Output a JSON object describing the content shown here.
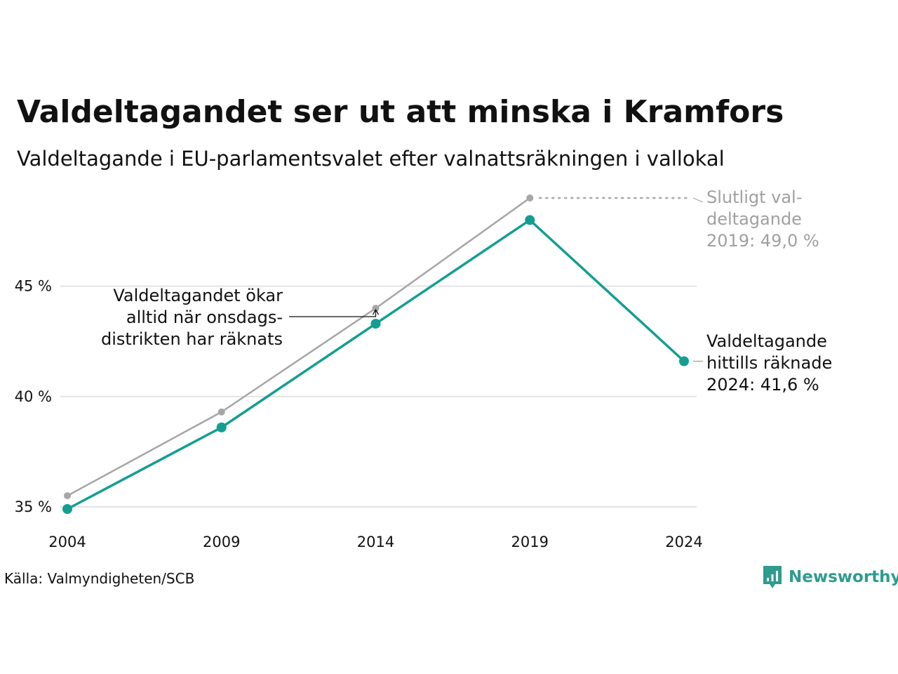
{
  "title": "Valdeltagandet ser ut att minska i Kramfors",
  "subtitle": "Valdeltagande i EU-parlamentsvalet efter valnattsräkningen i vallokal",
  "source": "Källa: Valmyndigheten/SCB",
  "brand": "Newsworthy",
  "chart_data": {
    "type": "line",
    "title": "Valdeltagandet ser ut att minska i Kramfors",
    "subtitle": "Valdeltagande i EU-parlamentsvalet efter valnattsräkningen i vallokal",
    "xlabel": "",
    "ylabel": "",
    "x": [
      2004,
      2009,
      2014,
      2019,
      2024
    ],
    "x_ticks": [
      "2004",
      "2009",
      "2014",
      "2019",
      "2024"
    ],
    "y_ticks": [
      35,
      40,
      45
    ],
    "y_tick_labels": [
      "35 %",
      "40 %",
      "45 %"
    ],
    "ylim": [
      34.5,
      49.5
    ],
    "grid": true,
    "series": [
      {
        "key": "final",
        "values": [
          35.5,
          39.3,
          44.0,
          49.0,
          null
        ],
        "color": "#a6a6a6"
      },
      {
        "key": "counted",
        "values": [
          34.9,
          38.6,
          43.3,
          48.0,
          41.6
        ],
        "color": "#139e92"
      }
    ],
    "annotations": {
      "final_2019": [
        "Slutligt val-",
        "deltagande",
        "2019: 49,0 %"
      ],
      "counted_2024": [
        "Valdeltagande",
        "hittills räknade",
        "2024: 41,6 %"
      ],
      "increase_note": [
        "Valdeltagandet ökar",
        "alltid när onsdags-",
        "distrikten har räknats"
      ]
    }
  },
  "colors": {
    "counted": "#139e92",
    "final": "#a6a6a6",
    "grid": "#e3e3e3",
    "text": "#111111",
    "muted_text": "#a0a0a0",
    "brand": "#2e9c8f"
  }
}
